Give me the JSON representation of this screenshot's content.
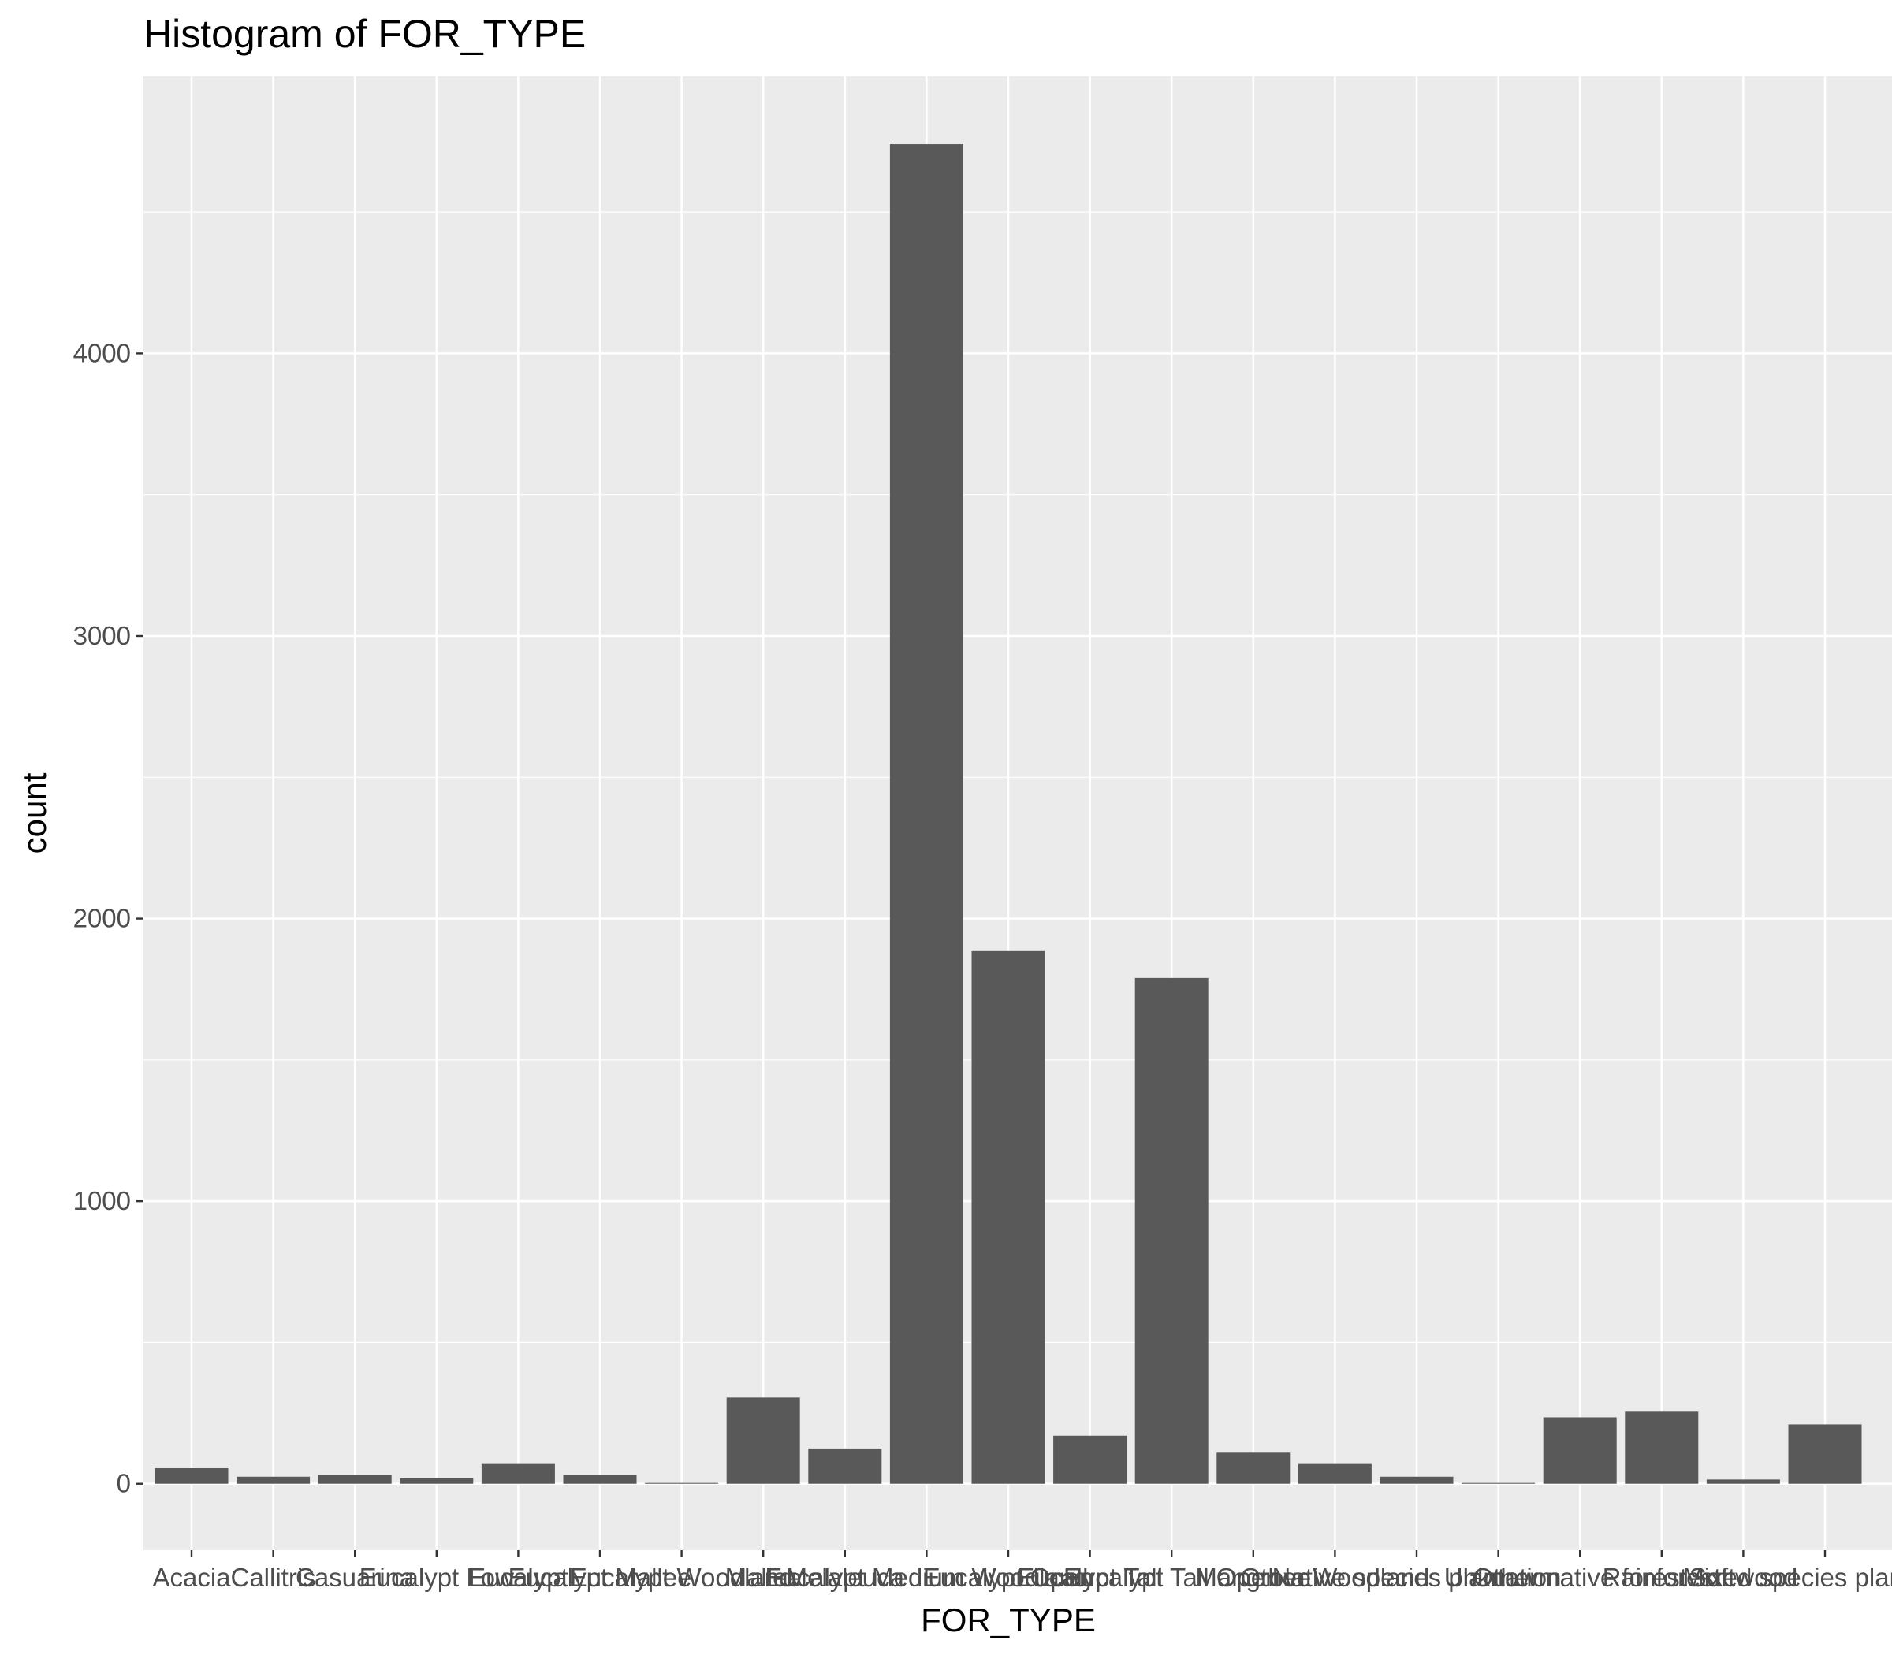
{
  "chart_data": {
    "type": "bar",
    "title": "Histogram of FOR_TYPE",
    "xlabel": "FOR_TYPE",
    "ylabel": "count",
    "categories": [
      "Acacia",
      "Callitris",
      "Casuarina",
      "Eucalypt Low",
      "Eucalypt",
      "Eucalypt Mallee",
      "Eucalypt Woodland",
      "Mallee",
      "Melaleuca",
      "Eucalypt Medium Woodland",
      "Eucalypt Open",
      "Eucalypt Tall",
      "Eucalypt Tall Open",
      "Mangrove",
      "Other Woodland",
      "Native species plantation",
      "Unknown",
      "Other native forest",
      "Rainforest",
      "Softwood",
      "Mixed species plantation"
    ],
    "values": [
      55,
      25,
      30,
      20,
      70,
      30,
      3,
      305,
      125,
      4740,
      1885,
      170,
      1790,
      110,
      70,
      25,
      3,
      235,
      255,
      15,
      210
    ],
    "ylim": [
      -235,
      4980
    ],
    "yticks": [
      0,
      1000,
      2000,
      3000,
      4000
    ],
    "ytick_labels": [
      "0",
      "1000",
      "2000",
      "3000",
      "4000"
    ],
    "grid": true,
    "bar_color": "#595959",
    "panel_color": "#ebebeb",
    "grid_color": "#ffffff"
  }
}
